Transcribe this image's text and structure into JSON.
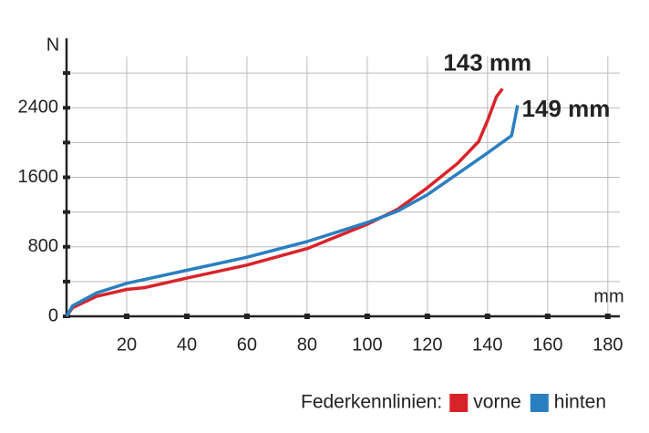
{
  "chart_data": {
    "type": "line",
    "x_label": "mm",
    "y_label": "N",
    "series": [
      {
        "name": "vorne",
        "color": "#d9232a",
        "x": [
          0,
          2,
          10,
          20,
          26,
          40,
          60,
          80,
          100,
          110,
          120,
          130,
          137,
          140,
          143,
          145
        ],
        "values": [
          0,
          100,
          230,
          310,
          330,
          440,
          590,
          780,
          1060,
          1230,
          1480,
          1760,
          2010,
          2250,
          2530,
          2620
        ]
      },
      {
        "name": "hinten",
        "color": "#2a7fc0",
        "x": [
          0,
          2,
          10,
          20,
          40,
          60,
          80,
          100,
          110,
          120,
          130,
          140,
          148,
          149,
          150
        ],
        "values": [
          0,
          120,
          270,
          380,
          530,
          680,
          860,
          1080,
          1210,
          1400,
          1640,
          1880,
          2080,
          2250,
          2430
        ]
      }
    ],
    "annotations": [
      {
        "text": "143 mm",
        "x": 143,
        "y": 2900
      },
      {
        "text": "149 mm",
        "x": 149,
        "y": 2370
      }
    ],
    "legend_title": "Federkennlinien:",
    "xlim": [
      0,
      184
    ],
    "xticks": [
      20,
      40,
      60,
      80,
      100,
      120,
      140,
      160,
      180
    ],
    "ylim": [
      0,
      3200
    ],
    "yticks": [
      0,
      800,
      1600,
      2400
    ],
    "minor_yticks": [
      400,
      1200,
      2000,
      2800
    ],
    "grid": true
  }
}
